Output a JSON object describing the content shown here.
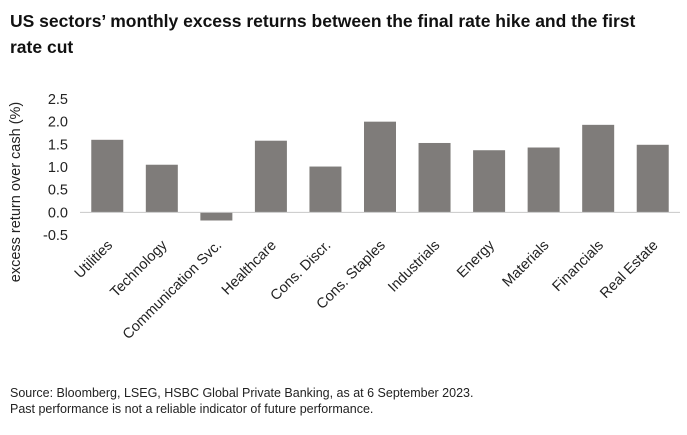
{
  "chart_data": {
    "type": "bar",
    "title": "US sectors’ monthly excess returns between the final rate hike and the first rate cut",
    "xlabel": "",
    "ylabel": "excess return over cash (%)",
    "ylim": [
      -0.5,
      2.5
    ],
    "yticks": [
      "2.5",
      "2.0",
      "1.5",
      "1.0",
      "0.5",
      "0.0",
      "-0.5"
    ],
    "ytick_values": [
      2.5,
      2.0,
      1.5,
      1.0,
      0.5,
      0.0,
      -0.5
    ],
    "categories": [
      "Utilities",
      "Technology",
      "Communication Svc.",
      "Healthcare",
      "Cons. Discr.",
      "Cons. Staples",
      "Industrials",
      "Energy",
      "Materials",
      "Financials",
      "Real Estate"
    ],
    "values": [
      1.6,
      1.05,
      -0.18,
      1.58,
      1.01,
      2.0,
      1.53,
      1.37,
      1.43,
      1.93,
      1.49
    ],
    "grid": false,
    "legend": "none",
    "bar_color": "#7f7c7a"
  },
  "footer": {
    "source": "Source: Bloomberg, LSEG, HSBC Global Private Banking, as at 6 September 2023.",
    "disclaimer": "Past performance is not a reliable indicator of future performance."
  }
}
